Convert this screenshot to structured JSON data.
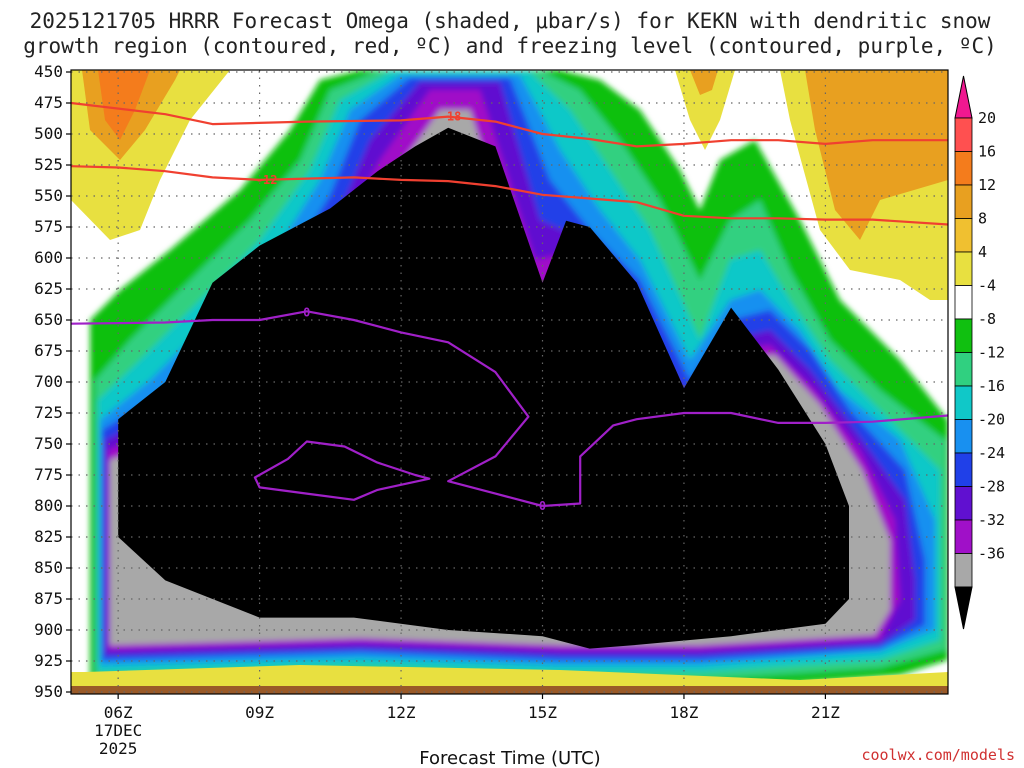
{
  "chart_data": {
    "type": "heatmap",
    "title_line1": "2025121705 HRRR Forecast Omega (shaded, μbar/s) for KEKN with dendritic snow",
    "title_line2": "growth region (contoured, red, ºC) and freezing level (contoured, purple, ºC)",
    "xlabel": "Forecast Time (UTC)",
    "credit": "coolwx.com/models",
    "x_range": [
      5.0,
      23.6
    ],
    "y_range": [
      450,
      950
    ],
    "x_ticks": [
      {
        "x": 6,
        "lines": [
          "06Z",
          "17DEC",
          "2025"
        ]
      },
      {
        "x": 9,
        "lines": [
          "09Z"
        ]
      },
      {
        "x": 12,
        "lines": [
          "12Z"
        ]
      },
      {
        "x": 15,
        "lines": [
          "15Z"
        ]
      },
      {
        "x": 18,
        "lines": [
          "18Z"
        ]
      },
      {
        "x": 21,
        "lines": [
          "21Z"
        ]
      }
    ],
    "y_ticks": [
      "450",
      "475",
      "500",
      "525",
      "550",
      "575",
      "600",
      "625",
      "650",
      "675",
      "700",
      "725",
      "750",
      "775",
      "800",
      "825",
      "850",
      "875",
      "900",
      "925",
      "950"
    ],
    "colorbar": {
      "levels": [
        "20",
        "16",
        "12",
        "8",
        "4",
        "-4",
        "-8",
        "-12",
        "-16",
        "-20",
        "-24",
        "-28",
        "-32",
        "-36"
      ],
      "colors": [
        "#ff5050",
        "#f47c1c",
        "#e8a020",
        "#f0c030",
        "#e8e040",
        "#ffffff",
        "#10c010",
        "#30d080",
        "#10c8c8",
        "#1890f0",
        "#2040e8",
        "#6010d0",
        "#a010c8",
        "#a8a8a8",
        "#000000"
      ],
      "top_arrow_color": "#f01890",
      "bottom_arrow_color": "#000000"
    },
    "omega_regions": [
      {
        "name": "ascent-core",
        "value": -36,
        "color": "#000000",
        "points": [
          [
            6.0,
            730
          ],
          [
            7.0,
            700
          ],
          [
            8.0,
            620
          ],
          [
            9.0,
            590
          ],
          [
            10.5,
            560
          ],
          [
            11.5,
            530
          ],
          [
            12.3,
            510
          ],
          [
            13.0,
            495
          ],
          [
            14.0,
            510
          ],
          [
            15.0,
            620
          ],
          [
            15.5,
            570
          ],
          [
            16.0,
            575
          ],
          [
            17.0,
            620
          ],
          [
            18.0,
            705
          ],
          [
            19.0,
            640
          ],
          [
            20.0,
            690
          ],
          [
            21.0,
            750
          ],
          [
            21.5,
            800
          ],
          [
            21.5,
            875
          ],
          [
            21.0,
            895
          ],
          [
            19.0,
            905
          ],
          [
            17.0,
            912
          ],
          [
            16.0,
            915
          ],
          [
            15.0,
            905
          ],
          [
            13.0,
            900
          ],
          [
            11.0,
            890
          ],
          [
            9.0,
            890
          ],
          [
            7.0,
            860
          ],
          [
            6.0,
            825
          ]
        ]
      }
    ],
    "contours": [
      {
        "name": "-18",
        "kind": "dendritic",
        "color": "#f04030",
        "points": [
          [
            5.0,
            475
          ],
          [
            7.0,
            484
          ],
          [
            8.0,
            492
          ],
          [
            10.0,
            490
          ],
          [
            12.0,
            489
          ],
          [
            13.0,
            486
          ],
          [
            14.0,
            490
          ],
          [
            15.0,
            500
          ],
          [
            16.0,
            504
          ],
          [
            17.0,
            510
          ],
          [
            18.0,
            508
          ],
          [
            19.0,
            505
          ],
          [
            20.0,
            505
          ],
          [
            21.0,
            508
          ],
          [
            22.0,
            505
          ],
          [
            23.6,
            505
          ]
        ]
      },
      {
        "name": "-12",
        "kind": "dendritic",
        "color": "#f04030",
        "points": [
          [
            5.0,
            526
          ],
          [
            6.0,
            527
          ],
          [
            7.0,
            530
          ],
          [
            8.0,
            535
          ],
          [
            9.0,
            537
          ],
          [
            10.0,
            536
          ],
          [
            11.0,
            535
          ],
          [
            12.0,
            537
          ],
          [
            13.0,
            538
          ],
          [
            14.0,
            542
          ],
          [
            15.0,
            549
          ],
          [
            16.0,
            552
          ],
          [
            17.0,
            555
          ],
          [
            18.0,
            566
          ],
          [
            19.0,
            568
          ],
          [
            20.0,
            568
          ],
          [
            21.0,
            569
          ],
          [
            22.0,
            569
          ],
          [
            23.6,
            573
          ]
        ]
      },
      {
        "name": "0",
        "kind": "freezing",
        "color": "#a020c8",
        "points": [
          [
            5.0,
            653
          ],
          [
            7.0,
            652
          ],
          [
            8.0,
            650
          ],
          [
            9.0,
            650
          ],
          [
            10.0,
            643
          ],
          [
            11.0,
            650
          ],
          [
            12.0,
            660
          ],
          [
            13.0,
            668
          ],
          [
            14.0,
            692
          ],
          [
            14.7,
            728
          ],
          [
            14.0,
            760
          ],
          [
            13.0,
            780
          ],
          [
            14.0,
            790
          ],
          [
            15.0,
            800
          ]
        ]
      },
      {
        "name": "0",
        "kind": "freezing",
        "color": "#a020c8",
        "points": [
          [
            15.0,
            800
          ],
          [
            15.8,
            798
          ],
          [
            15.8,
            760
          ],
          [
            16.5,
            735
          ],
          [
            17.0,
            730
          ],
          [
            18.0,
            725
          ],
          [
            19.0,
            725
          ],
          [
            20.0,
            733
          ],
          [
            21.0,
            733
          ],
          [
            22.0,
            732
          ],
          [
            23.6,
            727
          ]
        ]
      },
      {
        "name": "0",
        "kind": "freezing",
        "color": "#a020c8",
        "closed": true,
        "points": [
          [
            8.9,
            777
          ],
          [
            9.6,
            762
          ],
          [
            10.0,
            748
          ],
          [
            10.8,
            752
          ],
          [
            11.5,
            765
          ],
          [
            12.3,
            775
          ],
          [
            12.6,
            778
          ],
          [
            11.5,
            787
          ],
          [
            11.0,
            795
          ],
          [
            10.0,
            790
          ],
          [
            9.0,
            785
          ]
        ]
      }
    ],
    "contour_labels": [
      {
        "text": "-18",
        "x": 13.05,
        "y": 486,
        "color": "#f04030"
      },
      {
        "text": "-12",
        "x": 9.15,
        "y": 537,
        "color": "#f04030"
      },
      {
        "text": "0",
        "x": 10.0,
        "y": 644,
        "color": "#a020c8"
      },
      {
        "text": "0",
        "x": 15.0,
        "y": 800,
        "color": "#a020c8"
      }
    ]
  }
}
